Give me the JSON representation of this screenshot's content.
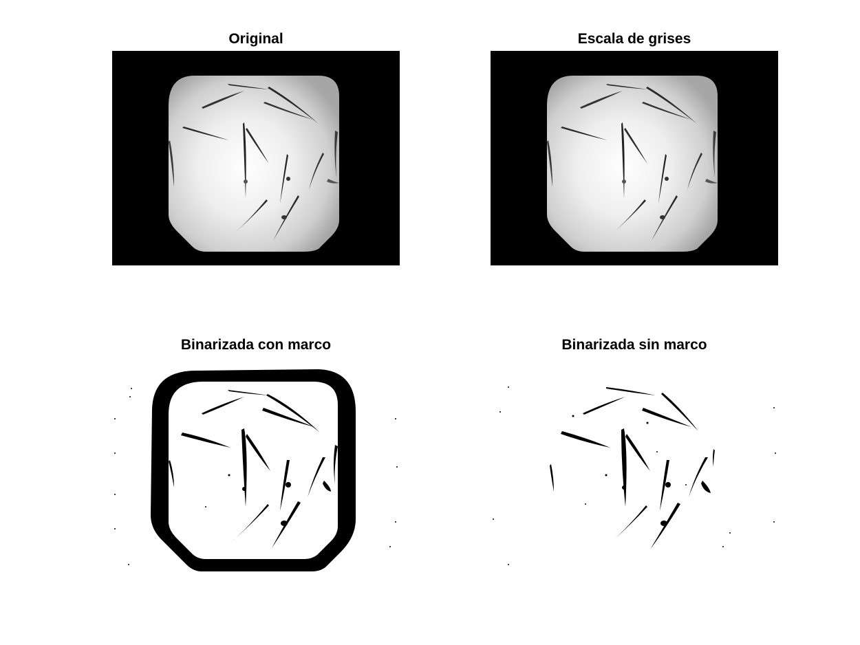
{
  "figure": {
    "panels": [
      {
        "title": "Original"
      },
      {
        "title": "Escala de grises"
      },
      {
        "title": "Binarizada con marco"
      },
      {
        "title": "Binarizada sin marco"
      }
    ],
    "colors": {
      "background": "#ffffff",
      "frame_black": "#000000",
      "dish_light": "#f2f2f2",
      "dish_edge": "#a8a8a8",
      "worm_dark": "#1a1a1a"
    }
  }
}
